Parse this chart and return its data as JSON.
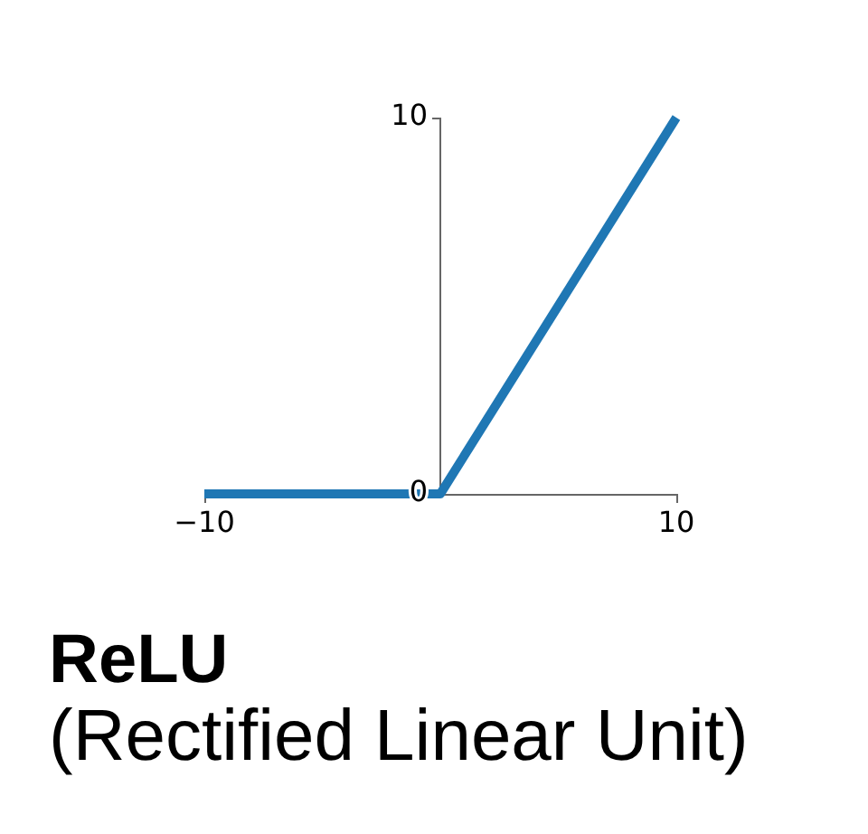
{
  "chart_data": {
    "type": "line",
    "title": "ReLU",
    "subtitle": "(Rectified Linear Unit)",
    "x": [
      -10,
      0,
      10
    ],
    "series": [
      {
        "color": "#1f77b4",
        "values": [
          0,
          0,
          10
        ]
      }
    ],
    "xlim": [
      -10,
      10
    ],
    "ylim": [
      0,
      10
    ],
    "xticks": [
      {
        "value": -10,
        "label": "−10"
      },
      10
    ],
    "yticks": [
      0,
      10
    ],
    "line_style": "solid"
  }
}
